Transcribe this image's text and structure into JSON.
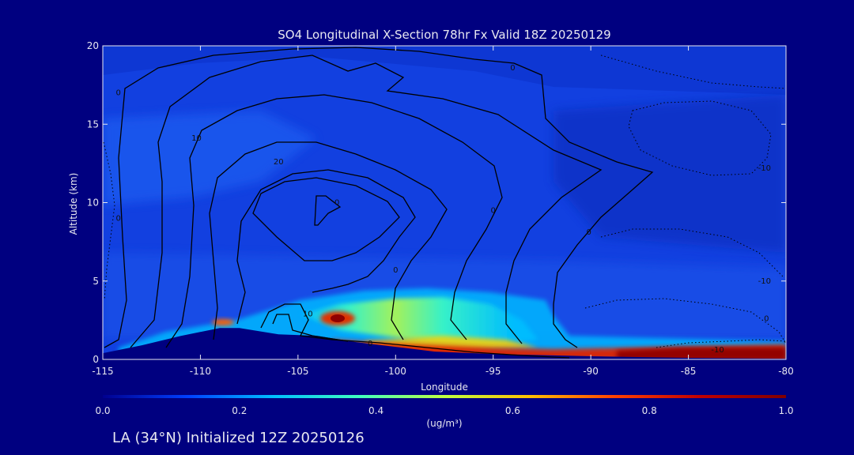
{
  "chart_data": {
    "type": "heatmap",
    "title": "SO4 Longitudinal X-Section 78hr  Fx Valid 18Z 20250129",
    "xlabel": "Longitude",
    "ylabel": "Altitude (km)",
    "xlim": [
      -115,
      -80
    ],
    "ylim": [
      0,
      20
    ],
    "x_ticks": [
      "-115",
      "-110",
      "-105",
      "-100",
      "-95",
      "-90",
      "-85",
      "-80"
    ],
    "y_ticks": [
      "0",
      "5",
      "10",
      "15",
      "20"
    ],
    "colorbar": {
      "label": "(ug/m³)",
      "range": [
        0.0,
        1.0
      ],
      "ticks": [
        "0.0",
        "0.2",
        "0.4",
        "0.6",
        "0.8",
        "1.0"
      ],
      "colormap": [
        "#00008f",
        "#0040ff",
        "#00c0ff",
        "#40ffc0",
        "#c0ff40",
        "#ffc000",
        "#ff4000",
        "#c00000",
        "#800000"
      ]
    },
    "terrain_km": [
      [
        -115,
        0.4
      ],
      [
        -113,
        0.9
      ],
      [
        -111,
        1.5
      ],
      [
        -109,
        2.0
      ],
      [
        -108,
        2.0
      ],
      [
        -106,
        1.6
      ],
      [
        -104,
        1.5
      ],
      [
        -102,
        1.1
      ],
      [
        -100,
        0.8
      ],
      [
        -98,
        0.5
      ],
      [
        -95,
        0.35
      ],
      [
        -90,
        0.2
      ],
      [
        -85,
        0.1
      ],
      [
        -80,
        0.05
      ]
    ],
    "contour_labels": [
      {
        "text": "0",
        "lon": -114.2,
        "alt": 17.0
      },
      {
        "text": "10",
        "lon": -110.2,
        "alt": 14.1
      },
      {
        "text": "20",
        "lon": -106.0,
        "alt": 12.6
      },
      {
        "text": "0",
        "lon": -103.0,
        "alt": 10.0
      },
      {
        "text": "0",
        "lon": -100.0,
        "alt": 5.7
      },
      {
        "text": "0",
        "lon": -95.0,
        "alt": 9.5
      },
      {
        "text": "0",
        "lon": -90.1,
        "alt": 8.1
      },
      {
        "text": "10",
        "lon": -104.5,
        "alt": 2.9
      },
      {
        "text": "0",
        "lon": -101.3,
        "alt": 1.0
      },
      {
        "text": "0",
        "lon": -94.0,
        "alt": 18.6
      },
      {
        "text": "-10",
        "lon": -81.1,
        "alt": 12.2
      },
      {
        "text": "-10",
        "lon": -81.1,
        "alt": 5.0
      },
      {
        "text": "-10",
        "lon": -83.5,
        "alt": 0.6
      },
      {
        "text": "0",
        "lon": -114.2,
        "alt": 9.0
      },
      {
        "text": "0",
        "lon": -81.0,
        "alt": 2.6
      }
    ]
  },
  "footer": {
    "caption": "LA (34°N) Initialized 12Z 20250126"
  }
}
